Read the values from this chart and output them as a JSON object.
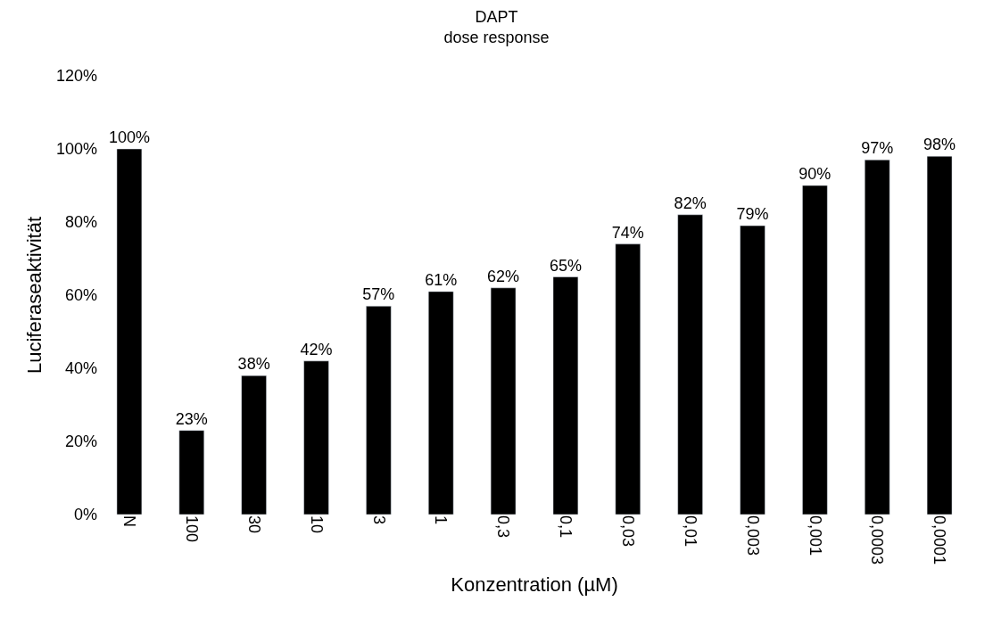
{
  "chart_data": {
    "type": "bar",
    "title": "DAPT\ndose response",
    "xlabel": "Konzentration (µM)",
    "ylabel": "Luciferaseaktivität",
    "categories": [
      "N",
      "100",
      "30",
      "10",
      "3",
      "1",
      "0,3",
      "0,1",
      "0,03",
      "0,01",
      "0,003",
      "0,001",
      "0,0003",
      "0,0001"
    ],
    "values": [
      100,
      23,
      38,
      42,
      57,
      61,
      62,
      65,
      74,
      82,
      79,
      90,
      97,
      98
    ],
    "value_labels": [
      "100%",
      "23%",
      "38%",
      "42%",
      "57%",
      "61%",
      "62%",
      "65%",
      "74%",
      "82%",
      "79%",
      "90%",
      "97%",
      "98%"
    ],
    "color": "#000000",
    "ylim": [
      0,
      120
    ],
    "yticks": [
      {
        "value": 0,
        "label": "0%"
      },
      {
        "value": 20,
        "label": "20%"
      },
      {
        "value": 40,
        "label": "40%"
      },
      {
        "value": 60,
        "label": "60%"
      },
      {
        "value": 80,
        "label": "80%"
      },
      {
        "value": 100,
        "label": "100%"
      },
      {
        "value": 120,
        "label": "120%"
      }
    ],
    "legend": false
  }
}
